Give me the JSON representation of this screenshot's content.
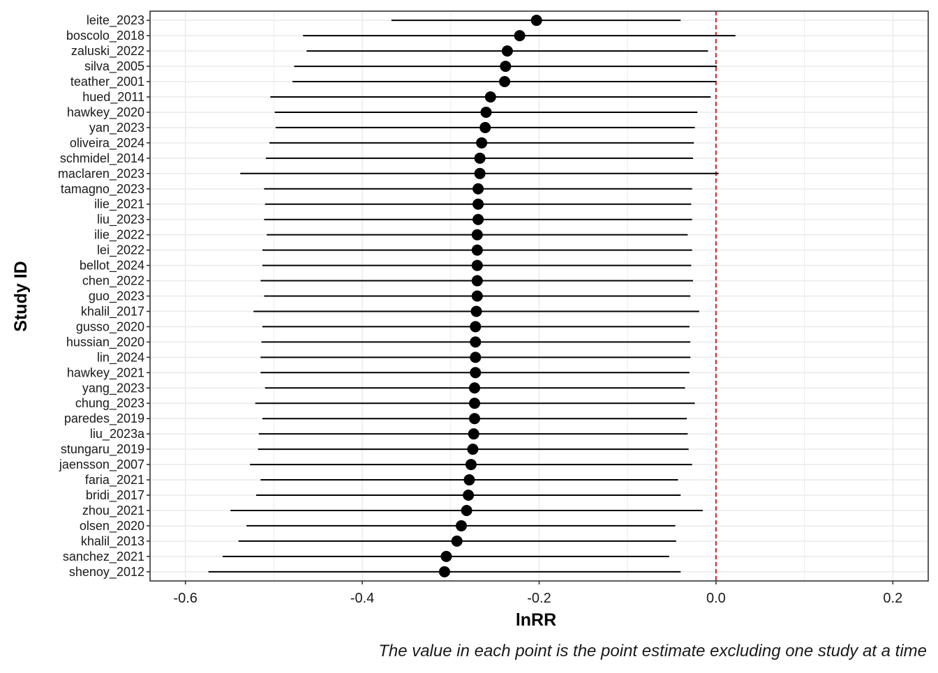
{
  "chart_data": {
    "type": "forest",
    "xlabel": "lnRR",
    "ylabel": "Study ID",
    "caption": "The value in each point is the point estimate excluding one study at a time",
    "xlim": [
      -0.64,
      0.24
    ],
    "xticks": [
      -0.6,
      -0.4,
      -0.2,
      0.0,
      0.2
    ],
    "xtick_labels": [
      "-0.6",
      "-0.4",
      "-0.2",
      "0.0",
      "0.2"
    ],
    "reference_line": 0.0,
    "grid": true,
    "colors": {
      "point": "#000000",
      "interval": "#000000",
      "reference_line": "#e31a1c",
      "grid": "#ebebeb",
      "panel_border": "#333333"
    },
    "studies": [
      {
        "label": "leite_2023",
        "estimate": -0.203,
        "lower": -0.367,
        "upper": -0.04
      },
      {
        "label": "boscolo_2018",
        "estimate": -0.222,
        "lower": -0.467,
        "upper": 0.022
      },
      {
        "label": "zaluski_2022",
        "estimate": -0.236,
        "lower": -0.463,
        "upper": -0.009
      },
      {
        "label": "silva_2005",
        "estimate": -0.238,
        "lower": -0.477,
        "upper": 0.001
      },
      {
        "label": "teather_2001",
        "estimate": -0.239,
        "lower": -0.479,
        "upper": 0.0
      },
      {
        "label": "hued_2011",
        "estimate": -0.255,
        "lower": -0.504,
        "upper": -0.006
      },
      {
        "label": "hawkey_2020",
        "estimate": -0.26,
        "lower": -0.499,
        "upper": -0.021
      },
      {
        "label": "yan_2023",
        "estimate": -0.261,
        "lower": -0.498,
        "upper": -0.024
      },
      {
        "label": "oliveira_2024",
        "estimate": -0.265,
        "lower": -0.505,
        "upper": -0.025
      },
      {
        "label": "schmidel_2014",
        "estimate": -0.267,
        "lower": -0.509,
        "upper": -0.026
      },
      {
        "label": "maclaren_2023",
        "estimate": -0.267,
        "lower": -0.538,
        "upper": 0.003
      },
      {
        "label": "tamagno_2023",
        "estimate": -0.269,
        "lower": -0.511,
        "upper": -0.027
      },
      {
        "label": "ilie_2021",
        "estimate": -0.269,
        "lower": -0.51,
        "upper": -0.028
      },
      {
        "label": "liu_2023",
        "estimate": -0.269,
        "lower": -0.511,
        "upper": -0.027
      },
      {
        "label": "ilie_2022",
        "estimate": -0.27,
        "lower": -0.508,
        "upper": -0.032
      },
      {
        "label": "lei_2022",
        "estimate": -0.27,
        "lower": -0.513,
        "upper": -0.027
      },
      {
        "label": "bellot_2024",
        "estimate": -0.27,
        "lower": -0.513,
        "upper": -0.028
      },
      {
        "label": "chen_2022",
        "estimate": -0.27,
        "lower": -0.515,
        "upper": -0.026
      },
      {
        "label": "guo_2023",
        "estimate": -0.27,
        "lower": -0.511,
        "upper": -0.029
      },
      {
        "label": "khalil_2017",
        "estimate": -0.271,
        "lower": -0.523,
        "upper": -0.019
      },
      {
        "label": "gusso_2020",
        "estimate": -0.272,
        "lower": -0.513,
        "upper": -0.03
      },
      {
        "label": "hussian_2020",
        "estimate": -0.272,
        "lower": -0.514,
        "upper": -0.029
      },
      {
        "label": "lin_2024",
        "estimate": -0.272,
        "lower": -0.515,
        "upper": -0.029
      },
      {
        "label": "hawkey_2021",
        "estimate": -0.272,
        "lower": -0.515,
        "upper": -0.03
      },
      {
        "label": "yang_2023",
        "estimate": -0.273,
        "lower": -0.51,
        "upper": -0.035
      },
      {
        "label": "chung_2023",
        "estimate": -0.273,
        "lower": -0.521,
        "upper": -0.024
      },
      {
        "label": "paredes_2019",
        "estimate": -0.273,
        "lower": -0.513,
        "upper": -0.033
      },
      {
        "label": "liu_2023a",
        "estimate": -0.274,
        "lower": -0.517,
        "upper": -0.032
      },
      {
        "label": "stungaru_2019",
        "estimate": -0.275,
        "lower": -0.518,
        "upper": -0.031
      },
      {
        "label": "jaensson_2007",
        "estimate": -0.277,
        "lower": -0.527,
        "upper": -0.027
      },
      {
        "label": "faria_2021",
        "estimate": -0.279,
        "lower": -0.515,
        "upper": -0.043
      },
      {
        "label": "bridi_2017",
        "estimate": -0.28,
        "lower": -0.52,
        "upper": -0.04
      },
      {
        "label": "zhou_2021",
        "estimate": -0.282,
        "lower": -0.549,
        "upper": -0.015
      },
      {
        "label": "olsen_2020",
        "estimate": -0.288,
        "lower": -0.531,
        "upper": -0.046
      },
      {
        "label": "khalil_2013",
        "estimate": -0.293,
        "lower": -0.54,
        "upper": -0.045
      },
      {
        "label": "sanchez_2021",
        "estimate": -0.305,
        "lower": -0.558,
        "upper": -0.053
      },
      {
        "label": "shenoy_2012",
        "estimate": -0.307,
        "lower": -0.574,
        "upper": -0.04
      }
    ]
  }
}
